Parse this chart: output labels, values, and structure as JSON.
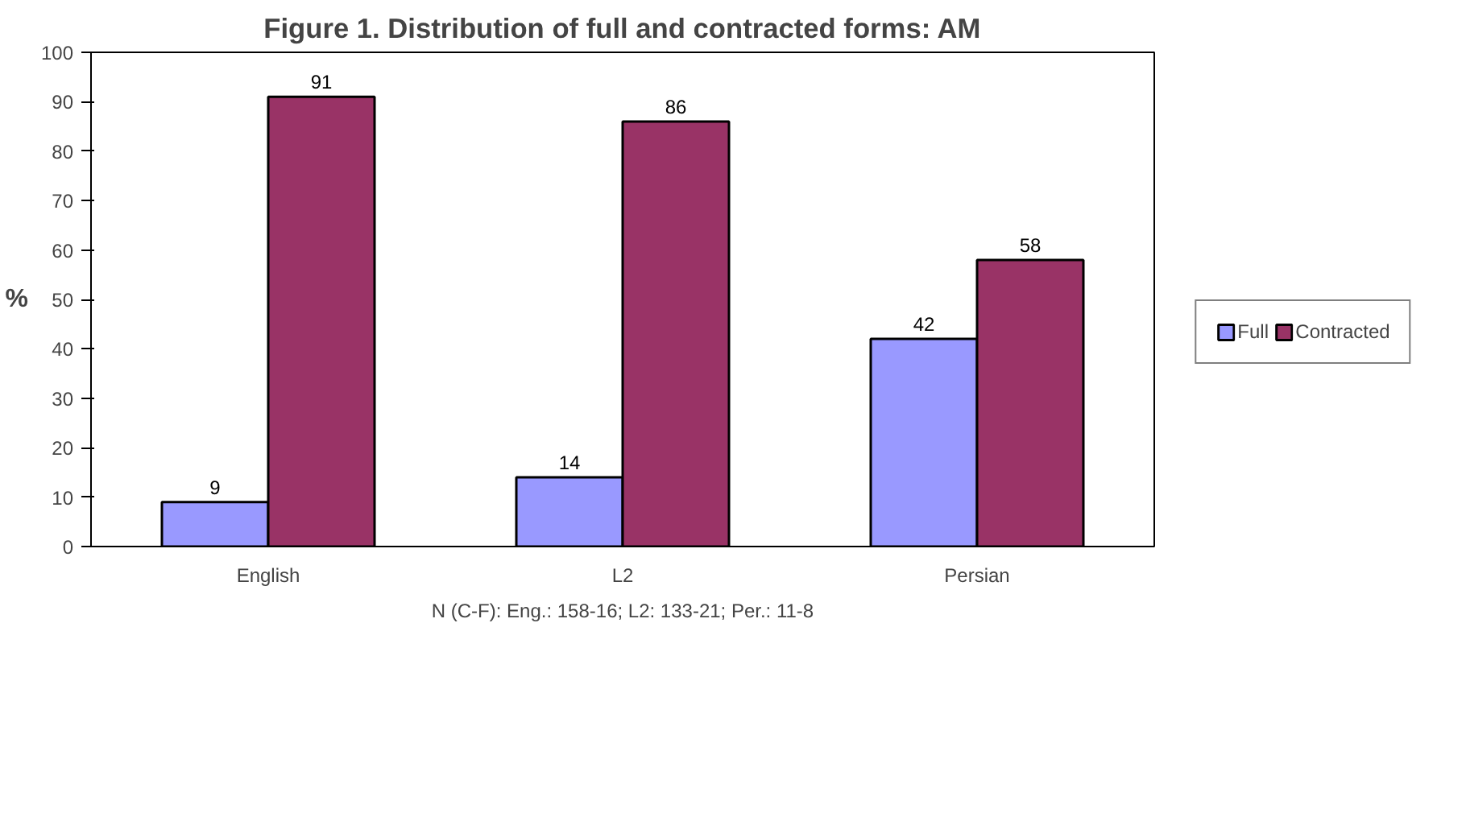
{
  "chart_data": {
    "type": "bar",
    "title": "Figure 1. Distribution of full and contracted forms: AM",
    "xlabel": "N (C-F): Eng.: 158-16; L2: 133-21; Per.: 11-8",
    "ylabel": "%",
    "categories": [
      "English",
      "L2",
      "Persian"
    ],
    "series": [
      {
        "name": "Full",
        "color": "#9999ff",
        "values": [
          9,
          14,
          42
        ]
      },
      {
        "name": "Contracted",
        "color": "#993366",
        "values": [
          91,
          86,
          58
        ]
      }
    ],
    "ylim": [
      0,
      100
    ],
    "yticks": [
      0,
      10,
      20,
      30,
      40,
      50,
      60,
      70,
      80,
      90,
      100
    ],
    "legend": "right",
    "data_labels": true
  }
}
